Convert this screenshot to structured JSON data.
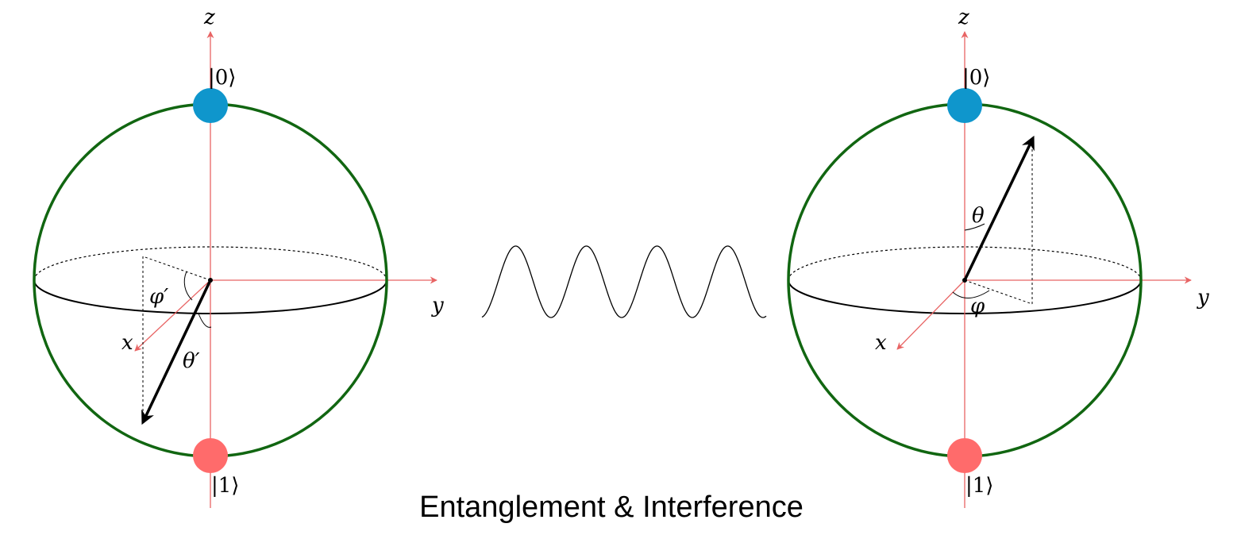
{
  "caption": "Entanglement & Interference",
  "colors": {
    "sphere": "#116611",
    "axis": "#e86464",
    "state_zero": "#0f96cc",
    "state_one": "#ff6b6b",
    "vector": "#000000"
  },
  "left_sphere": {
    "labels": {
      "z": "z",
      "y": "y",
      "x": "x",
      "ket_zero": "|0⟩",
      "ket_one": "|1⟩",
      "theta": "θ′",
      "phi": "φ′"
    }
  },
  "right_sphere": {
    "labels": {
      "z": "z",
      "y": "y",
      "x": "x",
      "ket_zero": "|0⟩",
      "ket_one": "|1⟩",
      "theta": "θ",
      "phi": "φ"
    }
  }
}
